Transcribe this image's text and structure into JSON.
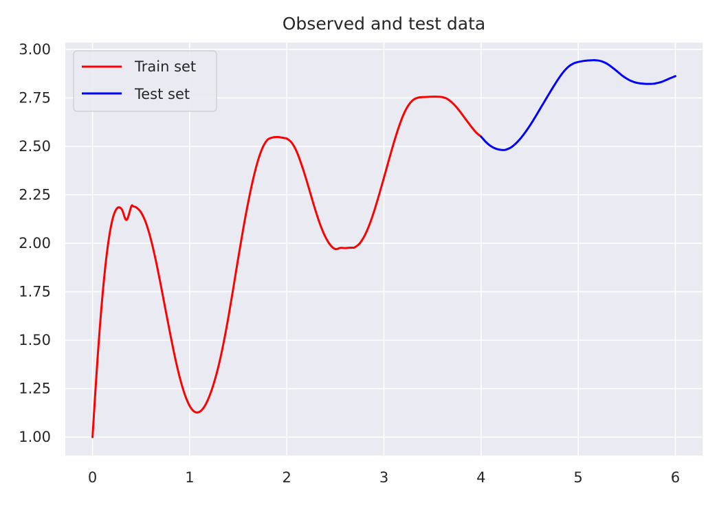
{
  "chart_data": {
    "type": "line",
    "title": "Observed and test data",
    "xlabel": "",
    "ylabel": "",
    "xlim": [
      -0.28,
      6.28
    ],
    "ylim": [
      0.905,
      3.035
    ],
    "xticks": [
      0,
      1,
      2,
      3,
      4,
      5,
      6
    ],
    "xtick_labels": [
      "0",
      "1",
      "2",
      "3",
      "4",
      "5",
      "6"
    ],
    "yticks": [
      1.0,
      1.25,
      1.5,
      1.75,
      2.0,
      2.25,
      2.5,
      2.75,
      3.0
    ],
    "ytick_labels": [
      "1.00",
      "1.25",
      "1.50",
      "1.75",
      "2.00",
      "2.25",
      "2.50",
      "2.75",
      "3.00"
    ],
    "grid": true,
    "legend_position": "top-left",
    "style": {
      "plot_background": "#eaeaf2",
      "grid_color": "#ffffff"
    },
    "series": [
      {
        "name": "Train set",
        "color": "#ff0000",
        "x": [
          0.0,
          0.05,
          0.1,
          0.15,
          0.2,
          0.25,
          0.3,
          0.35,
          0.4,
          0.42,
          0.45,
          0.5,
          0.55,
          0.6,
          0.65,
          0.7,
          0.75,
          0.8,
          0.85,
          0.9,
          0.95,
          1.0,
          1.05,
          1.1,
          1.15,
          1.2,
          1.25,
          1.3,
          1.35,
          1.4,
          1.45,
          1.5,
          1.55,
          1.6,
          1.65,
          1.7,
          1.75,
          1.8,
          1.85,
          1.9,
          1.95,
          1.98,
          2.0,
          2.05,
          2.1,
          2.15,
          2.2,
          2.25,
          2.3,
          2.35,
          2.4,
          2.45,
          2.5,
          2.55,
          2.6,
          2.65,
          2.68,
          2.7,
          2.75,
          2.8,
          2.85,
          2.9,
          2.95,
          3.0,
          3.05,
          3.1,
          3.15,
          3.2,
          3.25,
          3.3,
          3.35,
          3.4,
          3.45,
          3.5,
          3.55,
          3.58,
          3.6,
          3.65,
          3.7,
          3.75,
          3.8,
          3.85,
          3.9,
          3.95,
          4.0
        ],
        "y": [
          1.0,
          1.391,
          1.715,
          1.957,
          2.111,
          2.179,
          2.176,
          2.12,
          2.191,
          2.19,
          2.185,
          2.159,
          2.105,
          2.022,
          1.915,
          1.792,
          1.661,
          1.532,
          1.41,
          1.304,
          1.22,
          1.161,
          1.131,
          1.13,
          1.156,
          1.207,
          1.279,
          1.372,
          1.488,
          1.622,
          1.77,
          1.923,
          2.07,
          2.204,
          2.323,
          2.421,
          2.492,
          2.533,
          2.545,
          2.548,
          2.545,
          2.542,
          2.54,
          2.519,
          2.475,
          2.408,
          2.33,
          2.245,
          2.162,
          2.088,
          2.03,
          1.99,
          1.97,
          1.976,
          1.975,
          1.977,
          1.977,
          1.979,
          1.999,
          2.038,
          2.095,
          2.167,
          2.25,
          2.338,
          2.428,
          2.515,
          2.595,
          2.662,
          2.71,
          2.739,
          2.751,
          2.754,
          2.755,
          2.756,
          2.756,
          2.755,
          2.754,
          2.745,
          2.726,
          2.7,
          2.668,
          2.634,
          2.601,
          2.571,
          2.55
        ]
      },
      {
        "name": "Test set",
        "color": "#0000ff",
        "x": [
          4.0,
          4.05,
          4.1,
          4.15,
          4.2,
          4.23,
          4.25,
          4.3,
          4.35,
          4.4,
          4.45,
          4.5,
          4.55,
          4.6,
          4.65,
          4.7,
          4.75,
          4.8,
          4.85,
          4.9,
          4.95,
          5.0,
          5.05,
          5.1,
          5.15,
          5.17,
          5.2,
          5.25,
          5.3,
          5.35,
          5.4,
          5.45,
          5.5,
          5.55,
          5.6,
          5.65,
          5.7,
          5.75,
          5.78,
          5.8,
          5.85,
          5.9,
          5.95,
          6.0
        ],
        "y": [
          2.55,
          2.522,
          2.501,
          2.488,
          2.482,
          2.481,
          2.482,
          2.492,
          2.511,
          2.537,
          2.569,
          2.605,
          2.645,
          2.687,
          2.729,
          2.771,
          2.812,
          2.851,
          2.885,
          2.911,
          2.927,
          2.935,
          2.94,
          2.943,
          2.944,
          2.944,
          2.943,
          2.937,
          2.925,
          2.907,
          2.887,
          2.866,
          2.849,
          2.836,
          2.828,
          2.824,
          2.822,
          2.822,
          2.823,
          2.825,
          2.831,
          2.841,
          2.852,
          2.862
        ]
      }
    ]
  }
}
